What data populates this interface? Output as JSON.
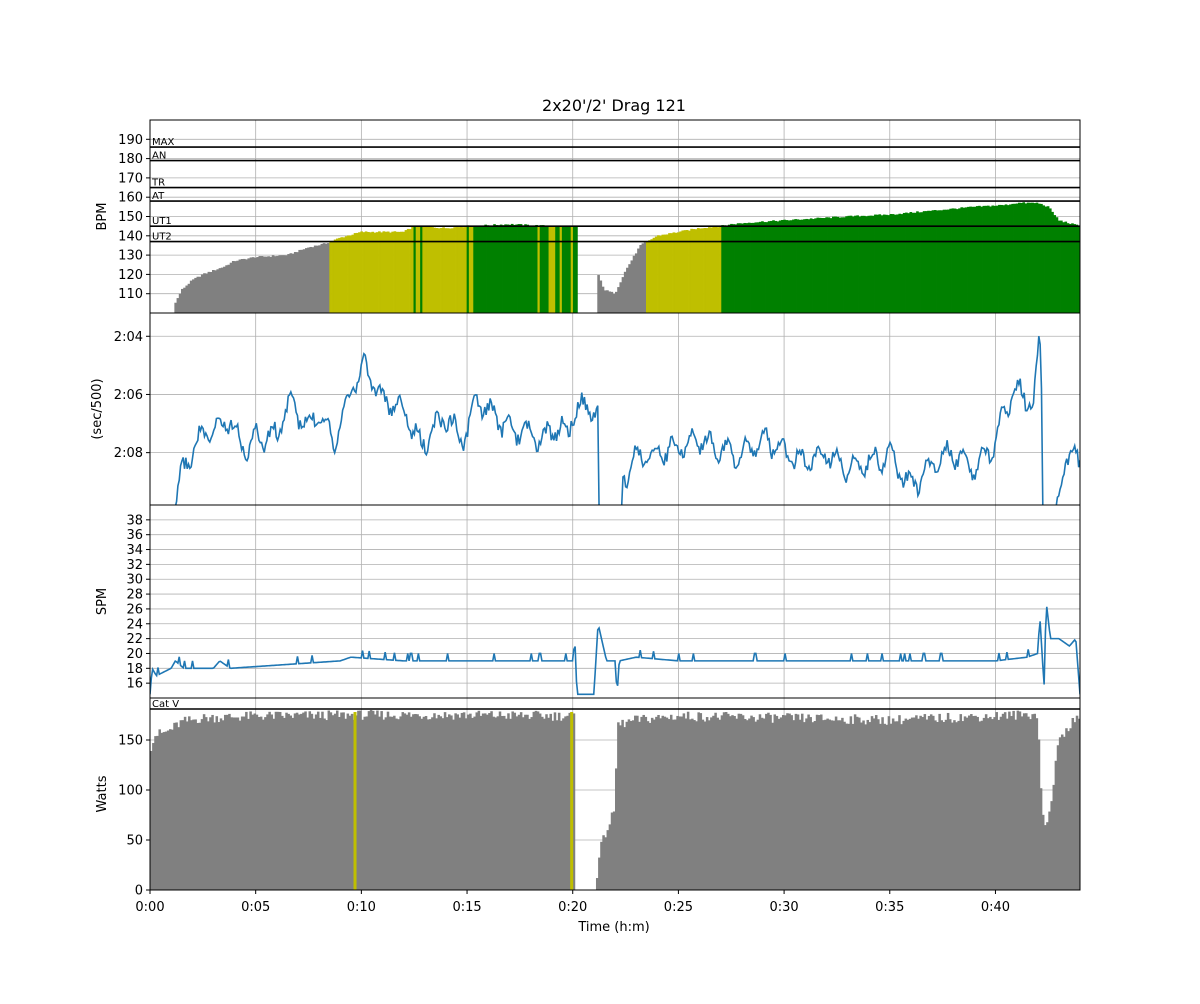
{
  "chart_data": {
    "type": "multi-panel",
    "title": "2x20'/2' Drag 121",
    "x_axis": {
      "label": "Time (h:m)",
      "unit": "minutes",
      "range": [
        0,
        44
      ],
      "tick_values": [
        0,
        5,
        10,
        15,
        20,
        25,
        30,
        35,
        40
      ],
      "tick_labels": [
        "0:00",
        "0:05",
        "0:10",
        "0:15",
        "0:20",
        "0:25",
        "0:30",
        "0:35",
        "0:40"
      ]
    },
    "grid": true,
    "panels": [
      {
        "id": "hr",
        "type": "bar",
        "ylabel": "BPM",
        "ylim": [
          100,
          200
        ],
        "ticks": [
          110,
          120,
          130,
          140,
          150,
          160,
          170,
          180,
          190
        ],
        "tick_labels": [
          "110",
          "120",
          "130",
          "140",
          "150",
          "160",
          "170",
          "180",
          "190"
        ],
        "zone_lines": [
          {
            "label": "MAX",
            "value": 186
          },
          {
            "label": "AN",
            "value": 179
          },
          {
            "label": "TR",
            "value": 165
          },
          {
            "label": "AT",
            "value": 158
          },
          {
            "label": "UT1",
            "value": 145
          },
          {
            "label": "UT2",
            "value": 137
          }
        ],
        "colors": {
          "below": "#808080",
          "ut2": "#bfbf00",
          "ut1": "#008000"
        },
        "hr_keypoints": [
          [
            0,
            0
          ],
          [
            1.1,
            0
          ],
          [
            1.15,
            104
          ],
          [
            1.5,
            112
          ],
          [
            2.0,
            117
          ],
          [
            2.5,
            120
          ],
          [
            3.5,
            124
          ],
          [
            4.0,
            127
          ],
          [
            5.0,
            129
          ],
          [
            6.5,
            130
          ],
          [
            7.5,
            134
          ],
          [
            8.3,
            136
          ],
          [
            9.0,
            139
          ],
          [
            10.0,
            142
          ],
          [
            12.0,
            142
          ],
          [
            12.5,
            145
          ],
          [
            14.0,
            144
          ],
          [
            15.0,
            145
          ],
          [
            17.0,
            146
          ],
          [
            19.0,
            145
          ],
          [
            20.2,
            145
          ],
          [
            20.4,
            0
          ],
          [
            21.1,
            0
          ],
          [
            21.15,
            121
          ],
          [
            21.5,
            112
          ],
          [
            22.0,
            110
          ],
          [
            22.5,
            122
          ],
          [
            23.2,
            135
          ],
          [
            24.0,
            140
          ],
          [
            25.0,
            142
          ],
          [
            26.0,
            144
          ],
          [
            27.0,
            145
          ],
          [
            27.5,
            146
          ],
          [
            28.5,
            147
          ],
          [
            30.0,
            148
          ],
          [
            31.5,
            149
          ],
          [
            33.0,
            150
          ],
          [
            35.0,
            151
          ],
          [
            37.0,
            153
          ],
          [
            39.0,
            155
          ],
          [
            40.5,
            156
          ],
          [
            41.0,
            157
          ],
          [
            42.0,
            157
          ],
          [
            42.5,
            155
          ],
          [
            43.0,
            148
          ],
          [
            44.0,
            145
          ]
        ]
      },
      {
        "id": "pace",
        "type": "line",
        "ylabel": "(sec/500)",
        "ylim": [
          129.8,
          123.2
        ],
        "inverted": true,
        "ticks": [
          124,
          126,
          128
        ],
        "tick_labels": [
          "2:04",
          "2:06",
          "2:08"
        ],
        "color": "#1f77b4",
        "pace_keypoints": [
          [
            0,
            130.5
          ],
          [
            1.2,
            130.5
          ],
          [
            1.3,
            129.2
          ],
          [
            1.6,
            128.6
          ],
          [
            2.0,
            127.9
          ],
          [
            2.5,
            127.4
          ],
          [
            3.0,
            127.3
          ],
          [
            3.7,
            126.8
          ],
          [
            4.5,
            127.9
          ],
          [
            5.0,
            127.5
          ],
          [
            6.0,
            127.4
          ],
          [
            6.6,
            126.2
          ],
          [
            7.5,
            127.2
          ],
          [
            8.0,
            126.5
          ],
          [
            8.7,
            127.6
          ],
          [
            9.5,
            125.8
          ],
          [
            10.2,
            125.0
          ],
          [
            11.0,
            126.2
          ],
          [
            12.0,
            126.5
          ],
          [
            12.8,
            127.8
          ],
          [
            14.0,
            126.7
          ],
          [
            14.8,
            127.6
          ],
          [
            15.5,
            126.2
          ],
          [
            16.2,
            126.7
          ],
          [
            17.0,
            127.2
          ],
          [
            17.8,
            127.3
          ],
          [
            18.6,
            127.6
          ],
          [
            19.2,
            127.1
          ],
          [
            19.8,
            127.3
          ],
          [
            20.0,
            126.5
          ],
          [
            21.2,
            126.5
          ],
          [
            21.25,
            130.5
          ],
          [
            22.3,
            130.5
          ],
          [
            22.35,
            128.9
          ],
          [
            23.0,
            128.2
          ],
          [
            24.0,
            128.0
          ],
          [
            25.0,
            127.8
          ],
          [
            26.0,
            127.5
          ],
          [
            27.0,
            127.9
          ],
          [
            28.0,
            128.1
          ],
          [
            29.0,
            127.5
          ],
          [
            30.0,
            128.0
          ],
          [
            31.0,
            128.4
          ],
          [
            32.0,
            128.0
          ],
          [
            33.0,
            128.6
          ],
          [
            34.0,
            128.3
          ],
          [
            35.0,
            128.1
          ],
          [
            36.0,
            129.2
          ],
          [
            37.0,
            128.4
          ],
          [
            38.0,
            128.0
          ],
          [
            39.0,
            128.6
          ],
          [
            40.0,
            127.6
          ],
          [
            40.8,
            125.9
          ],
          [
            41.3,
            126.0
          ],
          [
            41.8,
            126.4
          ],
          [
            42.1,
            123.9
          ],
          [
            42.2,
            126.5
          ],
          [
            42.25,
            130.5
          ],
          [
            42.8,
            130.5
          ],
          [
            43.0,
            129.4
          ],
          [
            43.3,
            128.2
          ],
          [
            44.0,
            128.2
          ]
        ]
      },
      {
        "id": "spm",
        "type": "line",
        "ylabel": "SPM",
        "ylim": [
          14,
          40
        ],
        "ticks": [
          16,
          18,
          20,
          22,
          24,
          26,
          28,
          30,
          32,
          34,
          36,
          38
        ],
        "tick_labels": [
          "16",
          "18",
          "20",
          "22",
          "24",
          "26",
          "28",
          "30",
          "32",
          "34",
          "36",
          "38"
        ],
        "color": "#1f77b4",
        "spm_keypoints": [
          [
            0,
            14.5
          ],
          [
            0.1,
            18
          ],
          [
            0.3,
            17
          ],
          [
            1.0,
            18
          ],
          [
            1.2,
            19
          ],
          [
            1.6,
            18
          ],
          [
            3.0,
            18
          ],
          [
            3.3,
            19
          ],
          [
            3.8,
            18
          ],
          [
            9.0,
            19
          ],
          [
            9.5,
            19.5
          ],
          [
            12.0,
            19
          ],
          [
            20.0,
            19
          ],
          [
            20.1,
            22
          ],
          [
            20.2,
            14.5
          ],
          [
            21.0,
            14.5
          ],
          [
            21.2,
            24
          ],
          [
            21.6,
            19
          ],
          [
            22.0,
            19
          ],
          [
            22.1,
            14.5
          ],
          [
            22.2,
            19
          ],
          [
            23.0,
            19.5
          ],
          [
            25.0,
            19
          ],
          [
            40.0,
            19
          ],
          [
            41.5,
            19.5
          ],
          [
            42.0,
            20
          ],
          [
            42.1,
            25
          ],
          [
            42.3,
            15.5
          ],
          [
            42.4,
            27
          ],
          [
            42.6,
            22
          ],
          [
            43.0,
            22
          ],
          [
            43.5,
            21
          ],
          [
            43.8,
            22
          ],
          [
            44.0,
            14.5
          ]
        ]
      },
      {
        "id": "watts",
        "type": "bar",
        "ylabel": "Watts",
        "ylim": [
          0,
          192
        ],
        "ticks": [
          0,
          50,
          100,
          150
        ],
        "tick_labels": [
          "0",
          "50",
          "100",
          "150"
        ],
        "zone_lines": [
          {
            "label": "Cat V",
            "value": 181
          }
        ],
        "colors": {
          "bars": "#808080",
          "markers": "#bfbf00"
        },
        "markers": [
          9.7,
          19.95
        ],
        "watt_keypoints": [
          [
            0,
            140
          ],
          [
            0.2,
            155
          ],
          [
            0.8,
            158
          ],
          [
            1.5,
            168
          ],
          [
            2.5,
            172
          ],
          [
            5.0,
            174
          ],
          [
            10.0,
            175
          ],
          [
            15.0,
            175
          ],
          [
            20.0,
            174
          ],
          [
            20.1,
            174
          ],
          [
            20.15,
            0
          ],
          [
            21.1,
            0
          ],
          [
            21.15,
            15
          ],
          [
            21.3,
            40
          ],
          [
            21.6,
            60
          ],
          [
            22.0,
            80
          ],
          [
            22.1,
            165
          ],
          [
            23.0,
            170
          ],
          [
            25.0,
            174
          ],
          [
            30.0,
            172
          ],
          [
            35.0,
            170
          ],
          [
            40.0,
            174
          ],
          [
            42.0,
            176
          ],
          [
            42.1,
            120
          ],
          [
            42.3,
            60
          ],
          [
            42.5,
            70
          ],
          [
            42.7,
            100
          ],
          [
            43.0,
            150
          ],
          [
            43.5,
            165
          ],
          [
            44.0,
            172
          ]
        ]
      }
    ]
  }
}
